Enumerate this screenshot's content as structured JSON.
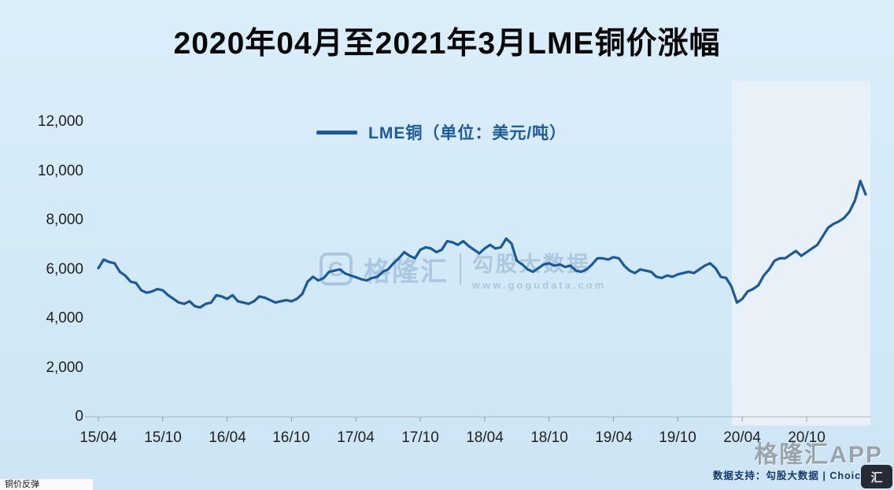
{
  "title": "2020年04月至2021年3月LME铜价涨幅",
  "legend": {
    "label": "LME铜（单位：美元/吨）"
  },
  "watermark": {
    "logo_letter": "G",
    "brand": "格隆汇",
    "product": "勾股大数据",
    "url": "www.gogudata.com"
  },
  "footer": {
    "app_badge": "格隆汇APP",
    "source": "数据支持：勾股大数据 | Choice",
    "corner_logo": "汇",
    "caption": "铜价反弹"
  },
  "colors": {
    "background": "#d3e9f7",
    "highlight": "#e9f1f8",
    "line": "#185a9d",
    "legend_text": "#1b5a9c",
    "axis_text": "#1f1f1f",
    "watermark": "#a3c0da"
  },
  "chart_data": {
    "type": "line",
    "title": "2020年04月至2021年3月LME铜价涨幅",
    "series_name": "LME铜",
    "unit": "美元/吨",
    "start": "2015-04",
    "end": "2021-03",
    "points_per_month": 2,
    "ylim": [
      0,
      12000
    ],
    "y_ticks": [
      0,
      2000,
      4000,
      6000,
      8000,
      10000,
      12000
    ],
    "y_tick_labels": [
      "0",
      "2,000",
      "4,000",
      "6,000",
      "8,000",
      "10,000",
      "12,000"
    ],
    "x_tick_labels": [
      "15/04",
      "15/10",
      "16/04",
      "16/10",
      "17/04",
      "17/10",
      "18/04",
      "18/10",
      "19/04",
      "19/10",
      "20/04",
      "20/10"
    ],
    "x_tick_indices": [
      0,
      12,
      24,
      36,
      48,
      60,
      72,
      84,
      96,
      108,
      120,
      132
    ],
    "grid": false,
    "legend_position": "top-center",
    "highlight_range_indices": [
      118,
      143
    ],
    "values": [
      6050,
      6400,
      6300,
      6250,
      5900,
      5750,
      5500,
      5450,
      5150,
      5050,
      5100,
      5200,
      5150,
      4950,
      4800,
      4650,
      4600,
      4700,
      4500,
      4450,
      4600,
      4650,
      4950,
      4900,
      4800,
      4950,
      4700,
      4650,
      4600,
      4700,
      4900,
      4850,
      4750,
      4650,
      4700,
      4750,
      4700,
      4800,
      5000,
      5500,
      5700,
      5550,
      5650,
      5900,
      5950,
      6000,
      5830,
      5750,
      5680,
      5600,
      5550,
      5650,
      5700,
      5900,
      6000,
      6250,
      6450,
      6700,
      6550,
      6450,
      6800,
      6900,
      6850,
      6700,
      6800,
      7150,
      7100,
      7000,
      7150,
      6950,
      6800,
      6650,
      6850,
      7000,
      6850,
      6900,
      7250,
      7050,
      6350,
      6200,
      6000,
      5900,
      6050,
      6200,
      6250,
      6150,
      6200,
      6100,
      6150,
      5950,
      5900,
      6000,
      6200,
      6450,
      6450,
      6400,
      6500,
      6450,
      6150,
      5950,
      5850,
      6000,
      5950,
      5900,
      5700,
      5650,
      5750,
      5700,
      5800,
      5850,
      5900,
      5850,
      6000,
      6150,
      6250,
      6050,
      5700,
      5650,
      5300,
      4650,
      4800,
      5100,
      5200,
      5350,
      5750,
      6000,
      6350,
      6450,
      6450,
      6600,
      6750,
      6550,
      6700,
      6850,
      7000,
      7350,
      7700,
      7850,
      7950,
      8100,
      8350,
      8800,
      9600,
      9050
    ]
  }
}
